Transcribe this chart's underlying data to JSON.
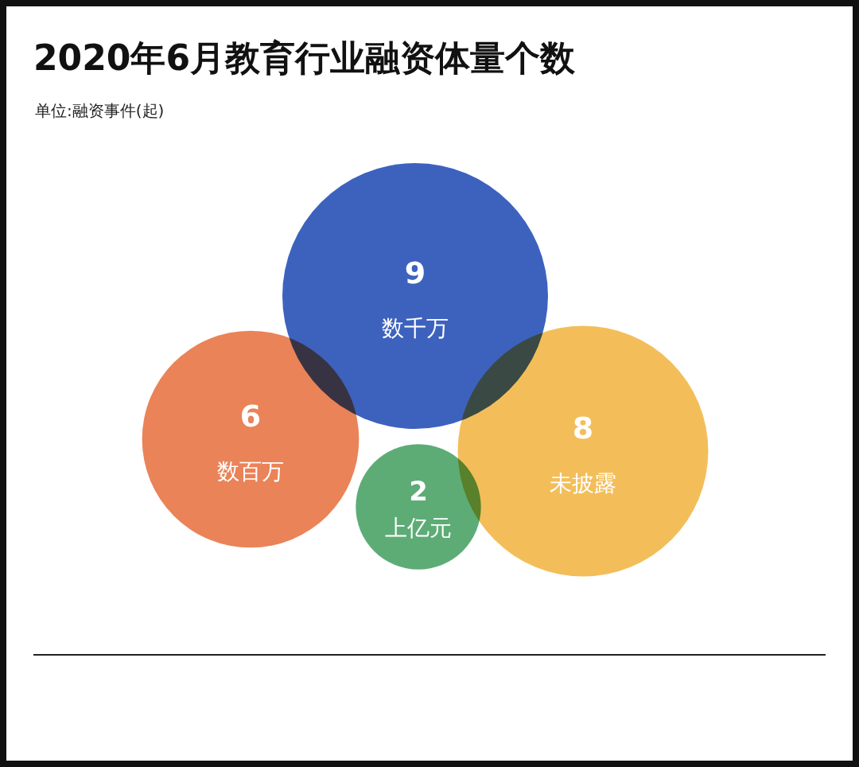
{
  "chart_data": {
    "type": "other",
    "title": "2020年6月教育行业融资体量个数",
    "subtitle": "单位:融资事件(起)",
    "categories": [
      "数千万",
      "数百万",
      "上亿元",
      "未披露"
    ],
    "values": [
      9,
      6,
      2,
      8
    ],
    "colors": [
      "#2d55b8",
      "#e8784a",
      "#4fa56a",
      "#f2b94b"
    ],
    "data_labels": true
  }
}
